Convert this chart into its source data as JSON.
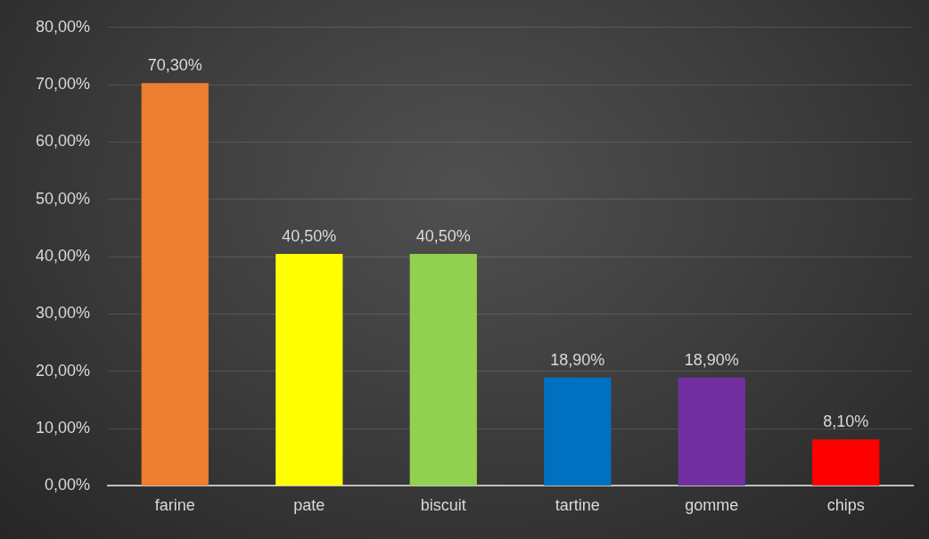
{
  "chart_data": {
    "type": "bar",
    "categories": [
      "farine",
      "pate",
      "biscuit",
      "tartine",
      "gomme",
      "chips"
    ],
    "values": [
      70.3,
      40.5,
      40.5,
      18.9,
      18.9,
      8.1
    ],
    "colors": [
      "#ed7d31",
      "#ffff00",
      "#92d050",
      "#0070c0",
      "#7030a0",
      "#ff0000"
    ],
    "value_labels": [
      "70,30%",
      "40,50%",
      "40,50%",
      "18,90%",
      "18,90%",
      "8,10%"
    ],
    "ylim": [
      0,
      80
    ],
    "yticks": [
      {
        "value": 0,
        "label": "0,00%"
      },
      {
        "value": 10,
        "label": "10,00%"
      },
      {
        "value": 20,
        "label": "20,00%"
      },
      {
        "value": 30,
        "label": "30,00%"
      },
      {
        "value": 40,
        "label": "40,00%"
      },
      {
        "value": 50,
        "label": "50,00%"
      },
      {
        "value": 60,
        "label": "60,00%"
      },
      {
        "value": 70,
        "label": "70,00%"
      },
      {
        "value": 80,
        "label": "80,00%"
      }
    ],
    "grid": "y",
    "legend": false
  }
}
